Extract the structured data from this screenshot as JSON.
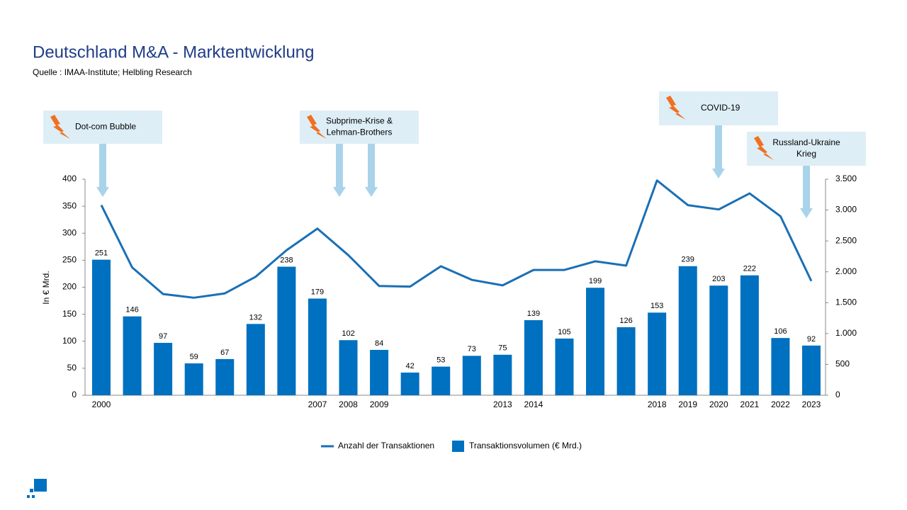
{
  "chart_data": {
    "type": "bar",
    "title": "Deutschland M&A - Marktentwicklung",
    "subtitle": "Quelle : IMAA-Institute; Helbling Research",
    "y_axis_label": "In € Mrd.",
    "categories": [
      "2000",
      null,
      null,
      null,
      null,
      null,
      null,
      "2007",
      "2008",
      "2009",
      null,
      null,
      null,
      "2013",
      "2014",
      null,
      null,
      null,
      "2018",
      "2019",
      "2020",
      "2021",
      "2022",
      "2023"
    ],
    "series": [
      {
        "name": "Anzahl der Transaktionen",
        "type": "line",
        "axis": "y2",
        "color": "#1a6fb5",
        "values": [
          3080,
          2070,
          1640,
          1580,
          1650,
          1920,
          2350,
          2700,
          2270,
          1770,
          1760,
          2090,
          1870,
          1780,
          2030,
          2030,
          2170,
          2100,
          3480,
          3080,
          3010,
          3270,
          2900,
          1850
        ]
      },
      {
        "name": "Transaktionsvolumen  (€ Mrd.)",
        "type": "bar",
        "color": "#0070c0",
        "values": [
          251,
          146,
          97,
          59,
          67,
          132,
          238,
          179,
          102,
          84,
          42,
          53,
          73,
          75,
          139,
          105,
          199,
          126,
          153,
          239,
          203,
          222,
          106,
          92
        ]
      }
    ],
    "ylim": [
      0,
      400
    ],
    "yticks": [
      0,
      50,
      100,
      150,
      200,
      250,
      300,
      350,
      400
    ],
    "y2lim": [
      0,
      3500
    ],
    "y2ticks": [
      0,
      500,
      {
        "value": 1000,
        "label": "1.000"
      },
      {
        "value": 1500,
        "label": "1.500"
      },
      {
        "value": 2000,
        "label": "2.000"
      },
      {
        "value": 2500,
        "label": "2.500"
      },
      {
        "value": 3000,
        "label": "3.000"
      },
      {
        "value": 3500,
        "label": "3.500"
      }
    ],
    "grid": false,
    "legend": "bottom",
    "annotations": [
      {
        "lines": [
          "Dot-com Bubble"
        ]
      },
      {
        "lines": [
          "Subprime-Krise  &",
          "Lehman-Brothers"
        ]
      },
      {
        "lines": [
          "COVID-19"
        ]
      },
      {
        "lines": [
          "Russland-Ukraine",
          "Krieg"
        ]
      }
    ]
  }
}
